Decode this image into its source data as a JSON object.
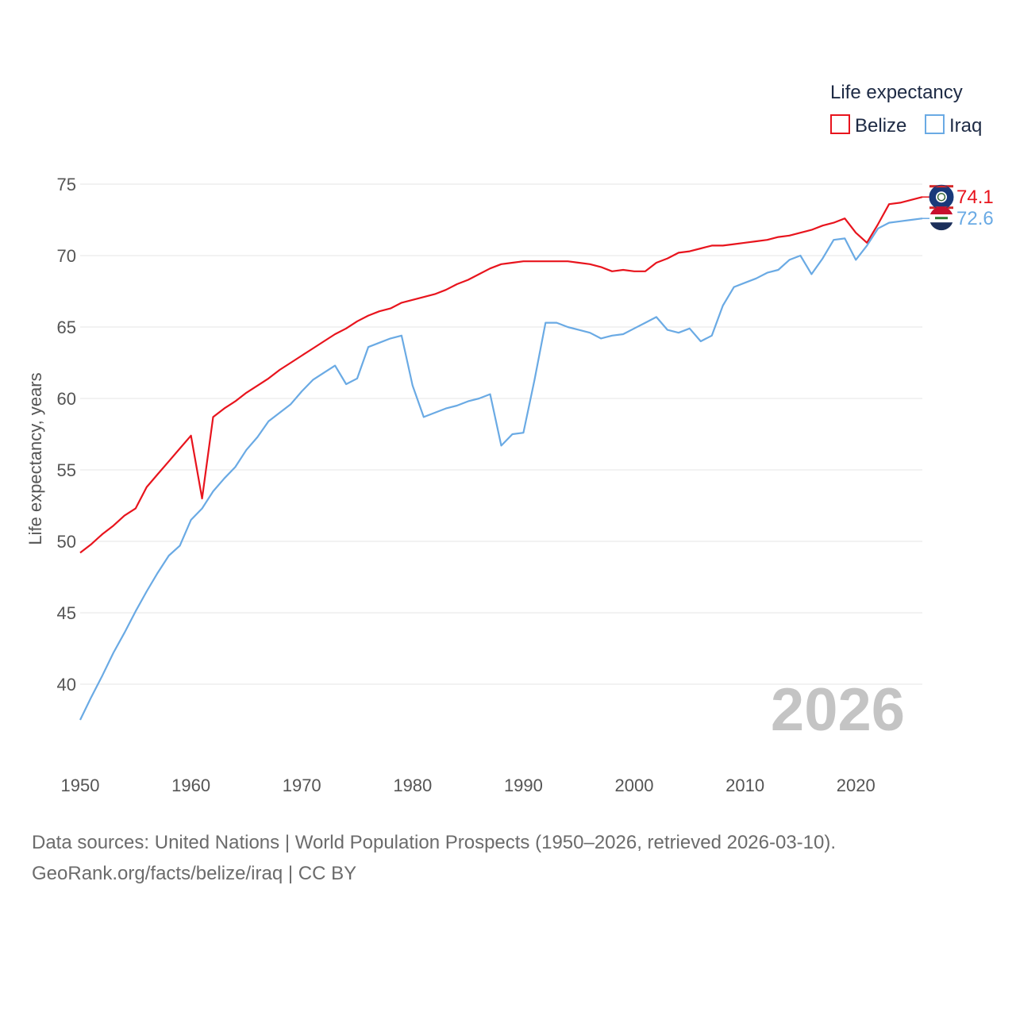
{
  "chart_data": {
    "type": "line",
    "ylabel": "Life expectancy, years",
    "xlim": [
      1950,
      2026
    ],
    "ylim": [
      35,
      76.5
    ],
    "yticks": [
      40,
      45,
      50,
      55,
      60,
      65,
      70,
      75
    ],
    "xticks": [
      1950,
      1960,
      1970,
      1980,
      1990,
      2000,
      2010,
      2020
    ],
    "legend_title": "Life expectancy",
    "current_year_label": "2026",
    "series": [
      {
        "name": "Belize",
        "color": "#e8141d",
        "end_label": "74.1",
        "values": [
          [
            1950,
            49.2
          ],
          [
            1951,
            49.8
          ],
          [
            1952,
            50.5
          ],
          [
            1953,
            51.1
          ],
          [
            1954,
            51.8
          ],
          [
            1955,
            52.3
          ],
          [
            1956,
            53.8
          ],
          [
            1957,
            54.7
          ],
          [
            1958,
            55.6
          ],
          [
            1959,
            56.5
          ],
          [
            1960,
            57.4
          ],
          [
            1961,
            53.0
          ],
          [
            1962,
            58.7
          ],
          [
            1963,
            59.3
          ],
          [
            1964,
            59.8
          ],
          [
            1965,
            60.4
          ],
          [
            1966,
            60.9
          ],
          [
            1967,
            61.4
          ],
          [
            1968,
            62.0
          ],
          [
            1969,
            62.5
          ],
          [
            1970,
            63.0
          ],
          [
            1971,
            63.5
          ],
          [
            1972,
            64.0
          ],
          [
            1973,
            64.5
          ],
          [
            1974,
            64.9
          ],
          [
            1975,
            65.4
          ],
          [
            1976,
            65.8
          ],
          [
            1977,
            66.1
          ],
          [
            1978,
            66.3
          ],
          [
            1979,
            66.7
          ],
          [
            1980,
            66.9
          ],
          [
            1981,
            67.1
          ],
          [
            1982,
            67.3
          ],
          [
            1983,
            67.6
          ],
          [
            1984,
            68.0
          ],
          [
            1985,
            68.3
          ],
          [
            1986,
            68.7
          ],
          [
            1987,
            69.1
          ],
          [
            1988,
            69.4
          ],
          [
            1989,
            69.5
          ],
          [
            1990,
            69.6
          ],
          [
            1991,
            69.6
          ],
          [
            1992,
            69.6
          ],
          [
            1993,
            69.6
          ],
          [
            1994,
            69.6
          ],
          [
            1995,
            69.5
          ],
          [
            1996,
            69.4
          ],
          [
            1997,
            69.2
          ],
          [
            1998,
            68.9
          ],
          [
            1999,
            69.0
          ],
          [
            2000,
            68.9
          ],
          [
            2001,
            68.9
          ],
          [
            2002,
            69.5
          ],
          [
            2003,
            69.8
          ],
          [
            2004,
            70.2
          ],
          [
            2005,
            70.3
          ],
          [
            2006,
            70.5
          ],
          [
            2007,
            70.7
          ],
          [
            2008,
            70.7
          ],
          [
            2009,
            70.8
          ],
          [
            2010,
            70.9
          ],
          [
            2011,
            71.0
          ],
          [
            2012,
            71.1
          ],
          [
            2013,
            71.3
          ],
          [
            2014,
            71.4
          ],
          [
            2015,
            71.6
          ],
          [
            2016,
            71.8
          ],
          [
            2017,
            72.1
          ],
          [
            2018,
            72.3
          ],
          [
            2019,
            72.6
          ],
          [
            2020,
            71.6
          ],
          [
            2021,
            70.9
          ],
          [
            2022,
            72.2
          ],
          [
            2023,
            73.6
          ],
          [
            2024,
            73.7
          ],
          [
            2025,
            73.9
          ],
          [
            2026,
            74.1
          ]
        ]
      },
      {
        "name": "Iraq",
        "color": "#6aaae4",
        "end_label": "72.6",
        "values": [
          [
            1950,
            37.5
          ],
          [
            1951,
            39.1
          ],
          [
            1952,
            40.6
          ],
          [
            1953,
            42.2
          ],
          [
            1954,
            43.6
          ],
          [
            1955,
            45.1
          ],
          [
            1956,
            46.5
          ],
          [
            1957,
            47.8
          ],
          [
            1958,
            49.0
          ],
          [
            1959,
            49.7
          ],
          [
            1960,
            51.5
          ],
          [
            1961,
            52.3
          ],
          [
            1962,
            53.5
          ],
          [
            1963,
            54.4
          ],
          [
            1964,
            55.2
          ],
          [
            1965,
            56.4
          ],
          [
            1966,
            57.3
          ],
          [
            1967,
            58.4
          ],
          [
            1968,
            59.0
          ],
          [
            1969,
            59.6
          ],
          [
            1970,
            60.5
          ],
          [
            1971,
            61.3
          ],
          [
            1972,
            61.8
          ],
          [
            1973,
            62.3
          ],
          [
            1974,
            61.0
          ],
          [
            1975,
            61.4
          ],
          [
            1976,
            63.6
          ],
          [
            1977,
            63.9
          ],
          [
            1978,
            64.2
          ],
          [
            1979,
            64.4
          ],
          [
            1980,
            60.9
          ],
          [
            1981,
            58.7
          ],
          [
            1982,
            59.0
          ],
          [
            1983,
            59.3
          ],
          [
            1984,
            59.5
          ],
          [
            1985,
            59.8
          ],
          [
            1986,
            60.0
          ],
          [
            1987,
            60.3
          ],
          [
            1988,
            56.7
          ],
          [
            1989,
            57.5
          ],
          [
            1990,
            57.6
          ],
          [
            1991,
            61.3
          ],
          [
            1992,
            65.3
          ],
          [
            1993,
            65.3
          ],
          [
            1994,
            65.0
          ],
          [
            1995,
            64.8
          ],
          [
            1996,
            64.6
          ],
          [
            1997,
            64.2
          ],
          [
            1998,
            64.4
          ],
          [
            1999,
            64.5
          ],
          [
            2000,
            64.9
          ],
          [
            2001,
            65.3
          ],
          [
            2002,
            65.7
          ],
          [
            2003,
            64.8
          ],
          [
            2004,
            64.6
          ],
          [
            2005,
            64.9
          ],
          [
            2006,
            64.0
          ],
          [
            2007,
            64.4
          ],
          [
            2008,
            66.5
          ],
          [
            2009,
            67.8
          ],
          [
            2010,
            68.1
          ],
          [
            2011,
            68.4
          ],
          [
            2012,
            68.8
          ],
          [
            2013,
            69.0
          ],
          [
            2014,
            69.7
          ],
          [
            2015,
            70.0
          ],
          [
            2016,
            68.7
          ],
          [
            2017,
            69.8
          ],
          [
            2018,
            71.1
          ],
          [
            2019,
            71.2
          ],
          [
            2020,
            69.7
          ],
          [
            2021,
            70.7
          ],
          [
            2022,
            71.9
          ],
          [
            2023,
            72.3
          ],
          [
            2024,
            72.4
          ],
          [
            2025,
            72.5
          ],
          [
            2026,
            72.6
          ]
        ]
      }
    ]
  },
  "footer": {
    "sources_line": "Data sources: United Nations | World Population Prospects (1950–2026, retrieved 2026-03-10).",
    "url_line": "GeoRank.org/facts/belize/iraq | CC BY"
  },
  "flags": {
    "belize_icon": "belize-flag-icon",
    "iraq_icon": "iraq-flag-icon"
  }
}
